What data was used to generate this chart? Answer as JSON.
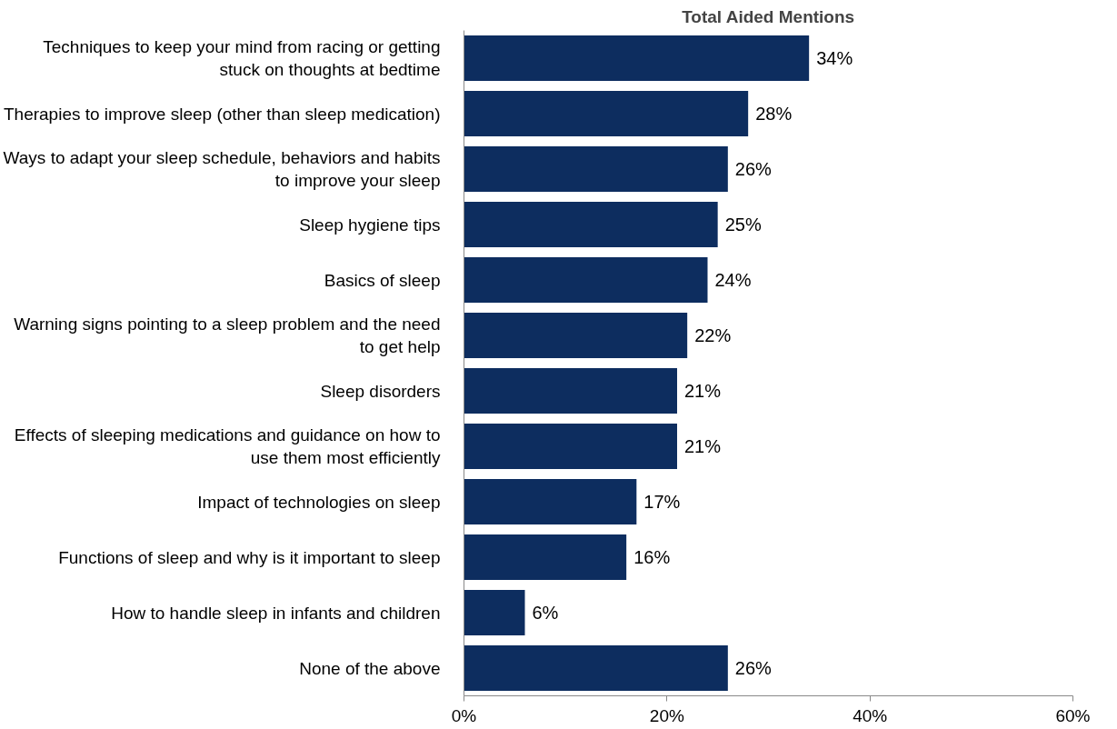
{
  "chart_data": {
    "type": "bar",
    "orientation": "horizontal",
    "title": "Total Aided Mentions",
    "categories": [
      "Techniques to keep your mind from racing or getting stuck on thoughts at bedtime",
      "Therapies to improve sleep (other than sleep medication)",
      "Ways to adapt your sleep schedule, behaviors and habits to improve your sleep",
      "Sleep hygiene tips",
      "Basics of sleep",
      "Warning signs pointing to a sleep problem and the need to get help",
      "Sleep disorders",
      "Effects of sleeping medications and guidance on how to use them most efficiently",
      "Impact of technologies on sleep",
      "Functions of sleep and why is it important to sleep",
      "How to handle sleep in infants and children",
      "None of the above"
    ],
    "values": [
      34,
      28,
      26,
      25,
      24,
      22,
      21,
      21,
      17,
      16,
      6,
      26
    ],
    "value_labels": [
      "34%",
      "28%",
      "26%",
      "25%",
      "24%",
      "22%",
      "21%",
      "21%",
      "17%",
      "16%",
      "6%",
      "26%"
    ],
    "color": "#0d2d5f",
    "xlim": [
      0,
      60
    ],
    "xticks": [
      {
        "value": 0,
        "label": "0%"
      },
      {
        "value": 20,
        "label": "20%"
      },
      {
        "value": 40,
        "label": "40%"
      },
      {
        "value": 60,
        "label": "60%"
      }
    ],
    "grid": false
  }
}
